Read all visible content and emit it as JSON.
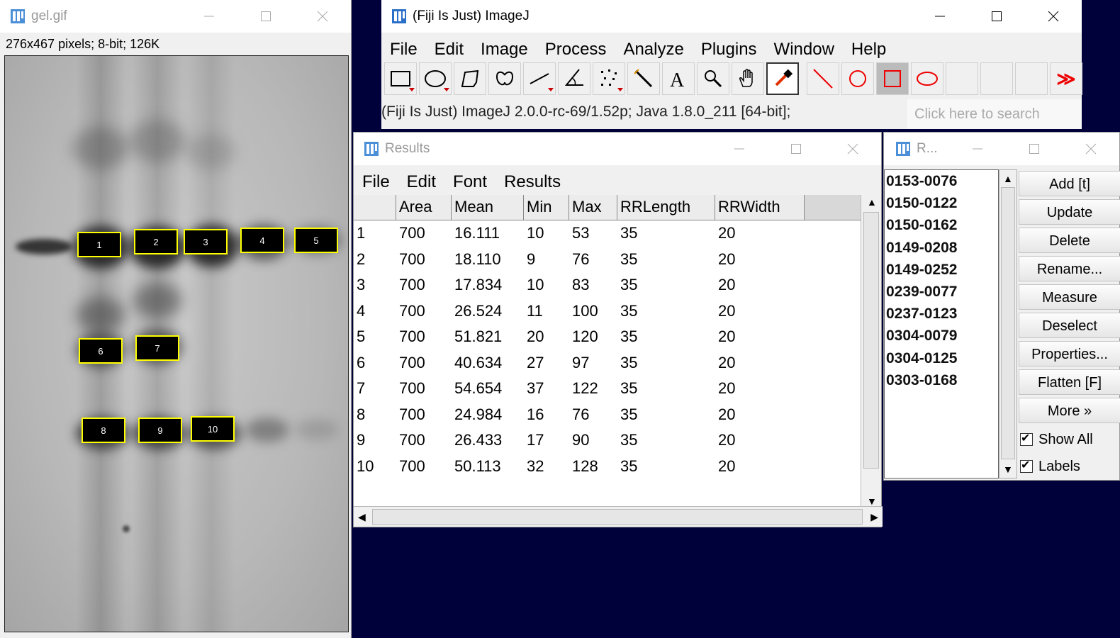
{
  "gel": {
    "title": "gel.gif",
    "info": "276x467 pixels; 8-bit; 126K",
    "roi_labels": [
      "1",
      "2",
      "3",
      "4",
      "5",
      "6",
      "7",
      "8",
      "9",
      "10"
    ]
  },
  "imagej": {
    "title": "(Fiji Is Just) ImageJ",
    "menu": [
      "File",
      "Edit",
      "Image",
      "Process",
      "Analyze",
      "Plugins",
      "Window",
      "Help"
    ],
    "tools": [
      "rectangle-tool",
      "oval-tool",
      "polygon-tool",
      "freehand-tool",
      "line-tool",
      "angle-tool",
      "point-tool",
      "wand-tool",
      "text-tool",
      "zoom-tool",
      "hand-tool",
      "color-picker-tool",
      "line-shape-tool",
      "circle-shape-tool",
      "rectangle-shape-tool",
      "ellipse-shape-tool",
      "empty-slot",
      "empty-slot",
      "empty-slot",
      "more-tools"
    ],
    "more_label": "≫",
    "status": "(Fiji Is Just) ImageJ 2.0.0-rc-69/1.52p; Java 1.8.0_211 [64-bit];",
    "search_placeholder": "Click here to search"
  },
  "results": {
    "title": "Results",
    "menu": [
      "File",
      "Edit",
      "Font",
      "Results"
    ],
    "columns": [
      "",
      "Area",
      "Mean",
      "Min",
      "Max",
      "RRLength",
      "RRWidth"
    ],
    "rows": [
      [
        "1",
        "700",
        "16.111",
        "10",
        "53",
        "35",
        "20"
      ],
      [
        "2",
        "700",
        "18.110",
        "9",
        "76",
        "35",
        "20"
      ],
      [
        "3",
        "700",
        "17.834",
        "10",
        "83",
        "35",
        "20"
      ],
      [
        "4",
        "700",
        "26.524",
        "11",
        "100",
        "35",
        "20"
      ],
      [
        "5",
        "700",
        "51.821",
        "20",
        "120",
        "35",
        "20"
      ],
      [
        "6",
        "700",
        "40.634",
        "27",
        "97",
        "35",
        "20"
      ],
      [
        "7",
        "700",
        "54.654",
        "37",
        "122",
        "35",
        "20"
      ],
      [
        "8",
        "700",
        "24.984",
        "16",
        "76",
        "35",
        "20"
      ],
      [
        "9",
        "700",
        "26.433",
        "17",
        "90",
        "35",
        "20"
      ],
      [
        "10",
        "700",
        "50.113",
        "32",
        "128",
        "35",
        "20"
      ]
    ]
  },
  "roi_manager": {
    "title": "R...",
    "items": [
      "0153-0076",
      "0150-0122",
      "0150-0162",
      "0149-0208",
      "0149-0252",
      "0239-0077",
      "0237-0123",
      "0304-0079",
      "0304-0125",
      "0303-0168"
    ],
    "buttons": [
      "Add [t]",
      "Update",
      "Delete",
      "Rename...",
      "Measure",
      "Deselect",
      "Properties...",
      "Flatten [F]",
      "More »"
    ],
    "show_all": "Show All",
    "labels": "Labels"
  }
}
